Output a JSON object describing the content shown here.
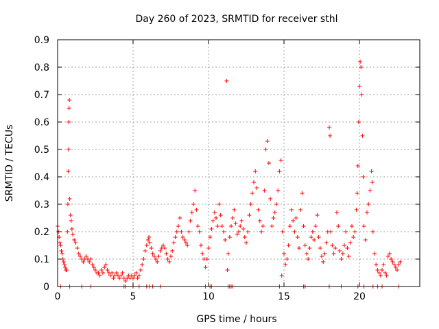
{
  "chart_data": {
    "type": "scatter",
    "title": "Day 260 of 2023, SRMTID for receiver sthl",
    "xlabel": "GPS time / hours",
    "ylabel": "SRMTID / TECUs",
    "xlim": [
      0,
      24
    ],
    "ylim": [
      0,
      0.9
    ],
    "xticks": [
      0,
      5,
      10,
      15,
      20
    ],
    "xtick_labels": [
      "0",
      "5",
      "10",
      "15",
      "20"
    ],
    "yticks": [
      0,
      0.1,
      0.2,
      0.3,
      0.4,
      0.5,
      0.6,
      0.7,
      0.8,
      0.9
    ],
    "ytick_labels": [
      "0",
      "0.1",
      "0.2",
      "0.3",
      "0.4",
      "0.5",
      "0.6",
      "0.7",
      "0.8",
      "0.9"
    ],
    "grid": true,
    "marker": "+",
    "color": "#ff0000",
    "series": [
      {
        "name": "sthl",
        "points": [
          [
            0.0,
            0.22
          ],
          [
            0.05,
            0.2
          ],
          [
            0.1,
            0.18
          ],
          [
            0.15,
            0.16
          ],
          [
            0.2,
            0.15
          ],
          [
            0.25,
            0.13
          ],
          [
            0.3,
            0.12
          ],
          [
            0.35,
            0.1
          ],
          [
            0.4,
            0.09
          ],
          [
            0.45,
            0.08
          ],
          [
            0.5,
            0.07
          ],
          [
            0.55,
            0.06
          ],
          [
            0.6,
            0.06
          ],
          [
            0.65,
            0.2
          ],
          [
            0.68,
            0.3
          ],
          [
            0.7,
            0.42
          ],
          [
            0.72,
            0.5
          ],
          [
            0.74,
            0.6
          ],
          [
            0.76,
            0.65
          ],
          [
            0.78,
            0.68
          ],
          [
            0.8,
            0.32
          ],
          [
            0.85,
            0.26
          ],
          [
            0.9,
            0.24
          ],
          [
            0.95,
            0.21
          ],
          [
            1.0,
            0.19
          ],
          [
            1.1,
            0.17
          ],
          [
            1.2,
            0.16
          ],
          [
            1.3,
            0.14
          ],
          [
            1.4,
            0.12
          ],
          [
            1.5,
            0.11
          ],
          [
            1.6,
            0.1
          ],
          [
            1.7,
            0.09
          ],
          [
            1.8,
            0.1
          ],
          [
            1.9,
            0.11
          ],
          [
            2.0,
            0.1
          ],
          [
            2.1,
            0.09
          ],
          [
            2.2,
            0.1
          ],
          [
            2.3,
            0.08
          ],
          [
            2.4,
            0.07
          ],
          [
            2.5,
            0.06
          ],
          [
            2.6,
            0.05
          ],
          [
            2.7,
            0.05
          ],
          [
            2.8,
            0.04
          ],
          [
            2.9,
            0.06
          ],
          [
            3.0,
            0.05
          ],
          [
            3.1,
            0.07
          ],
          [
            3.2,
            0.08
          ],
          [
            3.3,
            0.06
          ],
          [
            3.4,
            0.05
          ],
          [
            3.5,
            0.04
          ],
          [
            3.6,
            0.05
          ],
          [
            3.7,
            0.03
          ],
          [
            3.8,
            0.04
          ],
          [
            3.9,
            0.05
          ],
          [
            4.0,
            0.04
          ],
          [
            4.1,
            0.03
          ],
          [
            4.2,
            0.04
          ],
          [
            4.3,
            0.05
          ],
          [
            4.4,
            0.03
          ],
          [
            4.5,
            0.02
          ],
          [
            4.6,
            0.03
          ],
          [
            4.7,
            0.04
          ],
          [
            4.8,
            0.03
          ],
          [
            4.9,
            0.04
          ],
          [
            5.0,
            0.03
          ],
          [
            5.1,
            0.04
          ],
          [
            5.2,
            0.05
          ],
          [
            5.3,
            0.03
          ],
          [
            5.4,
            0.04
          ],
          [
            5.5,
            0.06
          ],
          [
            5.6,
            0.08
          ],
          [
            5.7,
            0.1
          ],
          [
            5.8,
            0.13
          ],
          [
            5.9,
            0.15
          ],
          [
            6.0,
            0.17
          ],
          [
            6.05,
            0.18
          ],
          [
            6.1,
            0.16
          ],
          [
            6.2,
            0.14
          ],
          [
            6.3,
            0.12
          ],
          [
            6.4,
            0.11
          ],
          [
            6.5,
            0.1
          ],
          [
            6.6,
            0.09
          ],
          [
            6.7,
            0.11
          ],
          [
            6.8,
            0.13
          ],
          [
            6.9,
            0.14
          ],
          [
            7.0,
            0.15
          ],
          [
            7.1,
            0.14
          ],
          [
            7.2,
            0.12
          ],
          [
            7.3,
            0.1
          ],
          [
            7.4,
            0.09
          ],
          [
            7.5,
            0.11
          ],
          [
            7.6,
            0.13
          ],
          [
            7.7,
            0.16
          ],
          [
            7.8,
            0.18
          ],
          [
            7.9,
            0.2
          ],
          [
            8.0,
            0.22
          ],
          [
            8.1,
            0.25
          ],
          [
            8.2,
            0.2
          ],
          [
            8.3,
            0.18
          ],
          [
            8.4,
            0.17
          ],
          [
            8.5,
            0.16
          ],
          [
            8.6,
            0.15
          ],
          [
            8.7,
            0.2
          ],
          [
            8.8,
            0.24
          ],
          [
            8.9,
            0.27
          ],
          [
            9.0,
            0.3
          ],
          [
            9.1,
            0.35
          ],
          [
            9.2,
            0.28
          ],
          [
            9.3,
            0.22
          ],
          [
            9.4,
            0.2
          ],
          [
            9.5,
            0.15
          ],
          [
            9.6,
            0.12
          ],
          [
            9.7,
            0.1
          ],
          [
            9.8,
            0.07
          ],
          [
            9.9,
            0.1
          ],
          [
            10.0,
            0.14
          ],
          [
            10.1,
            0.18
          ],
          [
            10.2,
            0.21
          ],
          [
            10.3,
            0.24
          ],
          [
            10.4,
            0.27
          ],
          [
            10.5,
            0.25
          ],
          [
            10.6,
            0.22
          ],
          [
            10.7,
            0.3
          ],
          [
            10.8,
            0.26
          ],
          [
            10.9,
            0.22
          ],
          [
            11.0,
            0.2
          ],
          [
            11.1,
            0.17
          ],
          [
            11.2,
            0.75
          ],
          [
            11.25,
            0.06
          ],
          [
            11.3,
            0.12
          ],
          [
            11.4,
            0.18
          ],
          [
            11.5,
            0.22
          ],
          [
            11.6,
            0.25
          ],
          [
            11.7,
            0.28
          ],
          [
            11.8,
            0.23
          ],
          [
            11.9,
            0.19
          ],
          [
            12.0,
            0.2
          ],
          [
            12.1,
            0.22
          ],
          [
            12.2,
            0.24
          ],
          [
            12.3,
            0.21
          ],
          [
            12.4,
            0.18
          ],
          [
            12.5,
            0.16
          ],
          [
            12.6,
            0.2
          ],
          [
            12.7,
            0.26
          ],
          [
            12.8,
            0.3
          ],
          [
            12.9,
            0.34
          ],
          [
            13.0,
            0.38
          ],
          [
            13.1,
            0.42
          ],
          [
            13.2,
            0.36
          ],
          [
            13.3,
            0.28
          ],
          [
            13.4,
            0.24
          ],
          [
            13.5,
            0.2
          ],
          [
            13.6,
            0.22
          ],
          [
            13.7,
            0.35
          ],
          [
            13.8,
            0.5
          ],
          [
            13.9,
            0.53
          ],
          [
            14.0,
            0.45
          ],
          [
            14.1,
            0.32
          ],
          [
            14.2,
            0.22
          ],
          [
            14.3,
            0.25
          ],
          [
            14.4,
            0.27
          ],
          [
            14.5,
            0.3
          ],
          [
            14.6,
            0.35
          ],
          [
            14.7,
            0.42
          ],
          [
            14.8,
            0.46
          ],
          [
            14.85,
            0.04
          ],
          [
            14.9,
            0.2
          ],
          [
            15.0,
            0.12
          ],
          [
            15.1,
            0.08
          ],
          [
            15.2,
            0.1
          ],
          [
            15.3,
            0.15
          ],
          [
            15.4,
            0.22
          ],
          [
            15.5,
            0.28
          ],
          [
            15.6,
            0.24
          ],
          [
            15.7,
            0.2
          ],
          [
            15.8,
            0.25
          ],
          [
            15.9,
            0.18
          ],
          [
            16.0,
            0.14
          ],
          [
            16.1,
            0.28
          ],
          [
            16.2,
            0.34
          ],
          [
            16.3,
            0.22
          ],
          [
            16.4,
            0.15
          ],
          [
            16.5,
            0.12
          ],
          [
            16.6,
            0.1
          ],
          [
            16.7,
            0.14
          ],
          [
            16.8,
            0.18
          ],
          [
            16.9,
            0.2
          ],
          [
            17.0,
            0.17
          ],
          [
            17.1,
            0.22
          ],
          [
            17.2,
            0.26
          ],
          [
            17.3,
            0.18
          ],
          [
            17.4,
            0.14
          ],
          [
            17.5,
            0.11
          ],
          [
            17.6,
            0.09
          ],
          [
            17.7,
            0.12
          ],
          [
            17.8,
            0.16
          ],
          [
            17.9,
            0.2
          ],
          [
            18.0,
            0.58
          ],
          [
            18.05,
            0.55
          ],
          [
            18.1,
            0.2
          ],
          [
            18.2,
            0.15
          ],
          [
            18.3,
            0.12
          ],
          [
            18.4,
            0.14
          ],
          [
            18.5,
            0.27
          ],
          [
            18.6,
            0.22
          ],
          [
            18.7,
            0.13
          ],
          [
            18.8,
            0.1
          ],
          [
            18.9,
            0.12
          ],
          [
            19.0,
            0.15
          ],
          [
            19.1,
            0.2
          ],
          [
            19.2,
            0.14
          ],
          [
            19.3,
            0.11
          ],
          [
            19.4,
            0.16
          ],
          [
            19.5,
            0.22
          ],
          [
            19.6,
            0.18
          ],
          [
            19.7,
            0.2
          ],
          [
            19.8,
            0.28
          ],
          [
            19.85,
            0.34
          ],
          [
            19.9,
            0.44
          ],
          [
            19.95,
            0.6
          ],
          [
            20.0,
            0.73
          ],
          [
            20.05,
            0.82
          ],
          [
            20.1,
            0.8
          ],
          [
            20.15,
            0.7
          ],
          [
            20.2,
            0.55
          ],
          [
            20.25,
            0.4
          ],
          [
            20.3,
            0.22
          ],
          [
            20.4,
            0.17
          ],
          [
            20.5,
            0.27
          ],
          [
            20.6,
            0.3
          ],
          [
            20.7,
            0.35
          ],
          [
            20.8,
            0.42
          ],
          [
            20.85,
            0.38
          ],
          [
            20.9,
            0.2
          ],
          [
            21.0,
            0.12
          ],
          [
            21.1,
            0.08
          ],
          [
            21.2,
            0.06
          ],
          [
            21.3,
            0.05
          ],
          [
            21.4,
            0.04
          ],
          [
            21.5,
            0.06
          ],
          [
            21.6,
            0.08
          ],
          [
            21.7,
            0.05
          ],
          [
            21.8,
            0.04
          ],
          [
            21.9,
            0.11
          ],
          [
            22.0,
            0.12
          ],
          [
            22.1,
            0.1
          ],
          [
            22.2,
            0.09
          ],
          [
            22.3,
            0.08
          ],
          [
            22.4,
            0.07
          ],
          [
            22.5,
            0.06
          ],
          [
            22.6,
            0.08
          ],
          [
            22.7,
            0.09
          ]
        ],
        "zeros": [
          0.2,
          0.8,
          1.6,
          2.2,
          4.4,
          4.5,
          5.0,
          5.4,
          5.9,
          6.1,
          6.3,
          6.8,
          9.8,
          10.1,
          10.2,
          11.3,
          11.4,
          11.5,
          11.6,
          14.7,
          16.3,
          16.4,
          18.0,
          18.8,
          19.9,
          20.3,
          20.9,
          21.2,
          21.5,
          22.6
        ]
      }
    ]
  }
}
